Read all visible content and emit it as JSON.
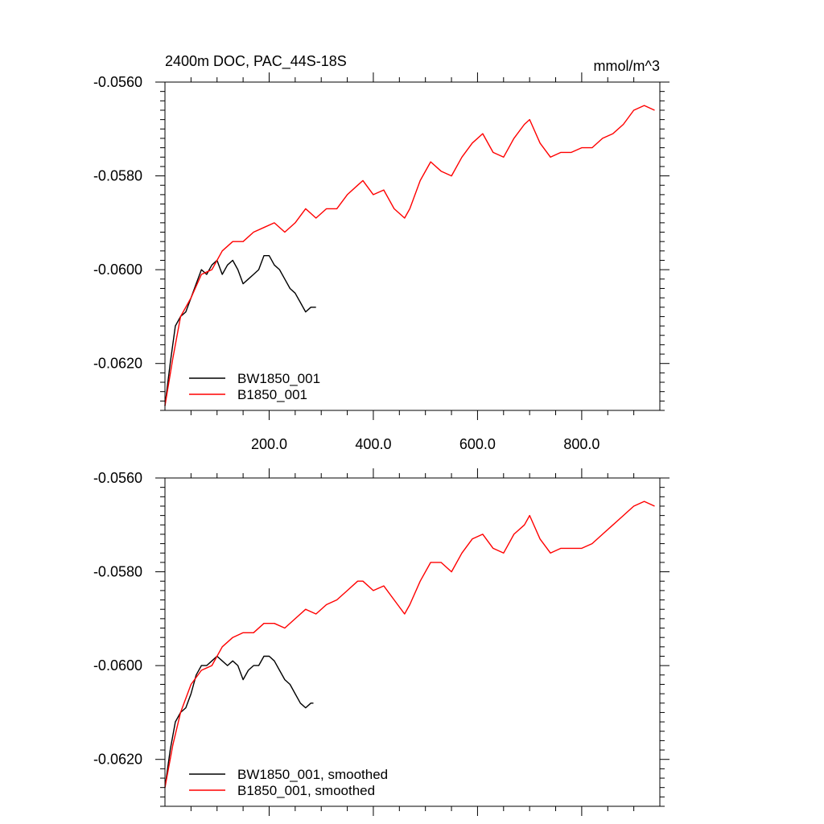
{
  "chart_data": [
    {
      "type": "line",
      "title": "2400m DOC, PAC_44S-18S",
      "units": "mmol/m^3",
      "xlabel": "",
      "ylabel": "",
      "xlim": [
        0,
        950
      ],
      "ylim": [
        -0.063,
        -0.056
      ],
      "xticks": [
        200,
        400,
        600,
        800
      ],
      "xtick_labels": [
        "200.0",
        "400.0",
        "600.0",
        "800.0"
      ],
      "yticks": [
        -0.056,
        -0.058,
        -0.06,
        -0.062
      ],
      "ytick_labels": [
        "-0.0560",
        "-0.0580",
        "-0.0600",
        "-0.0620"
      ],
      "grid": false,
      "legend_position": "bottom-left",
      "series": [
        {
          "name": "BW1850_001",
          "color": "#000000",
          "x": [
            0,
            10,
            20,
            30,
            40,
            50,
            60,
            70,
            80,
            90,
            100,
            110,
            120,
            130,
            140,
            150,
            160,
            170,
            180,
            190,
            200,
            210,
            220,
            230,
            240,
            250,
            260,
            270,
            280,
            290
          ],
          "y": [
            -0.0629,
            -0.062,
            -0.0612,
            -0.061,
            -0.0609,
            -0.0606,
            -0.0603,
            -0.06,
            -0.0601,
            -0.0599,
            -0.0598,
            -0.0601,
            -0.0599,
            -0.0598,
            -0.06,
            -0.0603,
            -0.0602,
            -0.0601,
            -0.06,
            -0.0597,
            -0.0597,
            -0.0599,
            -0.06,
            -0.0602,
            -0.0604,
            -0.0605,
            -0.0607,
            -0.0609,
            -0.0608,
            -0.0608
          ]
        },
        {
          "name": "B1850_001",
          "color": "#ff0000",
          "x": [
            0,
            15,
            30,
            50,
            70,
            90,
            110,
            130,
            150,
            170,
            190,
            210,
            230,
            250,
            270,
            290,
            310,
            330,
            350,
            370,
            380,
            400,
            420,
            440,
            460,
            470,
            490,
            510,
            530,
            550,
            570,
            590,
            610,
            630,
            650,
            670,
            690,
            700,
            720,
            740,
            760,
            780,
            800,
            820,
            840,
            860,
            880,
            900,
            920,
            940
          ],
          "y": [
            -0.0629,
            -0.0619,
            -0.061,
            -0.0606,
            -0.0601,
            -0.06,
            -0.0596,
            -0.0594,
            -0.0594,
            -0.0592,
            -0.0591,
            -0.059,
            -0.0592,
            -0.059,
            -0.0587,
            -0.0589,
            -0.0587,
            -0.0587,
            -0.0584,
            -0.0582,
            -0.0581,
            -0.0584,
            -0.0583,
            -0.0587,
            -0.0589,
            -0.0587,
            -0.0581,
            -0.0577,
            -0.0579,
            -0.058,
            -0.0576,
            -0.0573,
            -0.0571,
            -0.0575,
            -0.0576,
            -0.0572,
            -0.0569,
            -0.0568,
            -0.0573,
            -0.0576,
            -0.0575,
            -0.0575,
            -0.0574,
            -0.0574,
            -0.0572,
            -0.0571,
            -0.0569,
            -0.0566,
            -0.0565,
            -0.0566
          ]
        }
      ]
    },
    {
      "type": "line",
      "title": "",
      "xlabel": "",
      "ylabel": "",
      "xlim": [
        0,
        950
      ],
      "ylim": [
        -0.063,
        -0.056
      ],
      "xticks": [
        200,
        400,
        600,
        800
      ],
      "xtick_labels": [],
      "yticks": [
        -0.056,
        -0.058,
        -0.06,
        -0.062
      ],
      "ytick_labels": [
        "-0.0560",
        "-0.0580",
        "-0.0600",
        "-0.0620"
      ],
      "grid": false,
      "legend_position": "bottom-left",
      "series": [
        {
          "name": "BW1850_001, smoothed",
          "color": "#000000",
          "x": [
            0,
            10,
            20,
            30,
            40,
            50,
            60,
            70,
            80,
            90,
            100,
            110,
            120,
            130,
            140,
            150,
            160,
            170,
            180,
            190,
            200,
            210,
            220,
            230,
            240,
            250,
            260,
            270,
            280,
            285
          ],
          "y": [
            -0.0626,
            -0.0618,
            -0.0612,
            -0.061,
            -0.0609,
            -0.0606,
            -0.0602,
            -0.06,
            -0.06,
            -0.0599,
            -0.0598,
            -0.0599,
            -0.06,
            -0.0599,
            -0.06,
            -0.0603,
            -0.0601,
            -0.06,
            -0.06,
            -0.0598,
            -0.0598,
            -0.0599,
            -0.0601,
            -0.0603,
            -0.0604,
            -0.0606,
            -0.0608,
            -0.0609,
            -0.0608,
            -0.0608
          ]
        },
        {
          "name": "B1850_001, smoothed",
          "color": "#ff0000",
          "x": [
            0,
            15,
            30,
            50,
            70,
            90,
            110,
            130,
            150,
            170,
            190,
            210,
            230,
            250,
            270,
            290,
            310,
            330,
            350,
            370,
            380,
            400,
            420,
            440,
            460,
            470,
            490,
            510,
            530,
            550,
            570,
            590,
            610,
            630,
            650,
            670,
            690,
            700,
            720,
            740,
            760,
            780,
            800,
            820,
            840,
            860,
            880,
            900,
            920,
            940
          ],
          "y": [
            -0.0626,
            -0.0617,
            -0.061,
            -0.0604,
            -0.0601,
            -0.06,
            -0.0596,
            -0.0594,
            -0.0593,
            -0.0593,
            -0.0591,
            -0.0591,
            -0.0592,
            -0.059,
            -0.0588,
            -0.0589,
            -0.0587,
            -0.0586,
            -0.0584,
            -0.0582,
            -0.0582,
            -0.0584,
            -0.0583,
            -0.0586,
            -0.0589,
            -0.0587,
            -0.0582,
            -0.0578,
            -0.0578,
            -0.058,
            -0.0576,
            -0.0573,
            -0.0572,
            -0.0575,
            -0.0576,
            -0.0572,
            -0.057,
            -0.0568,
            -0.0573,
            -0.0576,
            -0.0575,
            -0.0575,
            -0.0575,
            -0.0574,
            -0.0572,
            -0.057,
            -0.0568,
            -0.0566,
            -0.0565,
            -0.0566
          ]
        }
      ]
    }
  ]
}
